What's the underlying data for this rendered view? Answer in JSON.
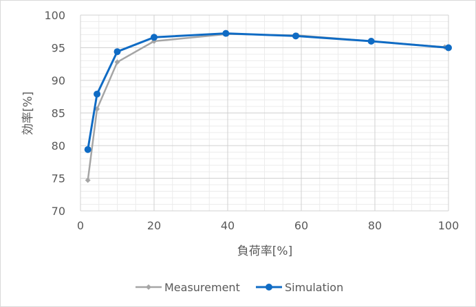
{
  "chart_data": {
    "type": "line",
    "title": "",
    "xlabel": "負荷率[%]",
    "ylabel": "効率[%]",
    "xlim": [
      0,
      100
    ],
    "ylim": [
      70,
      100
    ],
    "x_ticks": [
      0,
      20,
      40,
      60,
      80,
      100
    ],
    "y_ticks": [
      70,
      75,
      80,
      85,
      90,
      95,
      100
    ],
    "grid": true,
    "legend_position": "bottom",
    "series": [
      {
        "name": "Measurement",
        "color": "#a5a5a5",
        "marker": "diamond",
        "x": [
          2,
          4.5,
          10,
          20,
          40,
          59,
          79,
          99
        ],
        "y": [
          74.7,
          85.6,
          92.8,
          96.0,
          97.1,
          96.9,
          96.0,
          95.1
        ]
      },
      {
        "name": "Simulation",
        "color": "#0f6bc4",
        "marker": "circle",
        "x": [
          2,
          4.5,
          10,
          20,
          39.5,
          58.5,
          79,
          100
        ],
        "y": [
          79.4,
          87.9,
          94.4,
          96.6,
          97.2,
          96.8,
          96.0,
          95.0
        ]
      }
    ]
  }
}
